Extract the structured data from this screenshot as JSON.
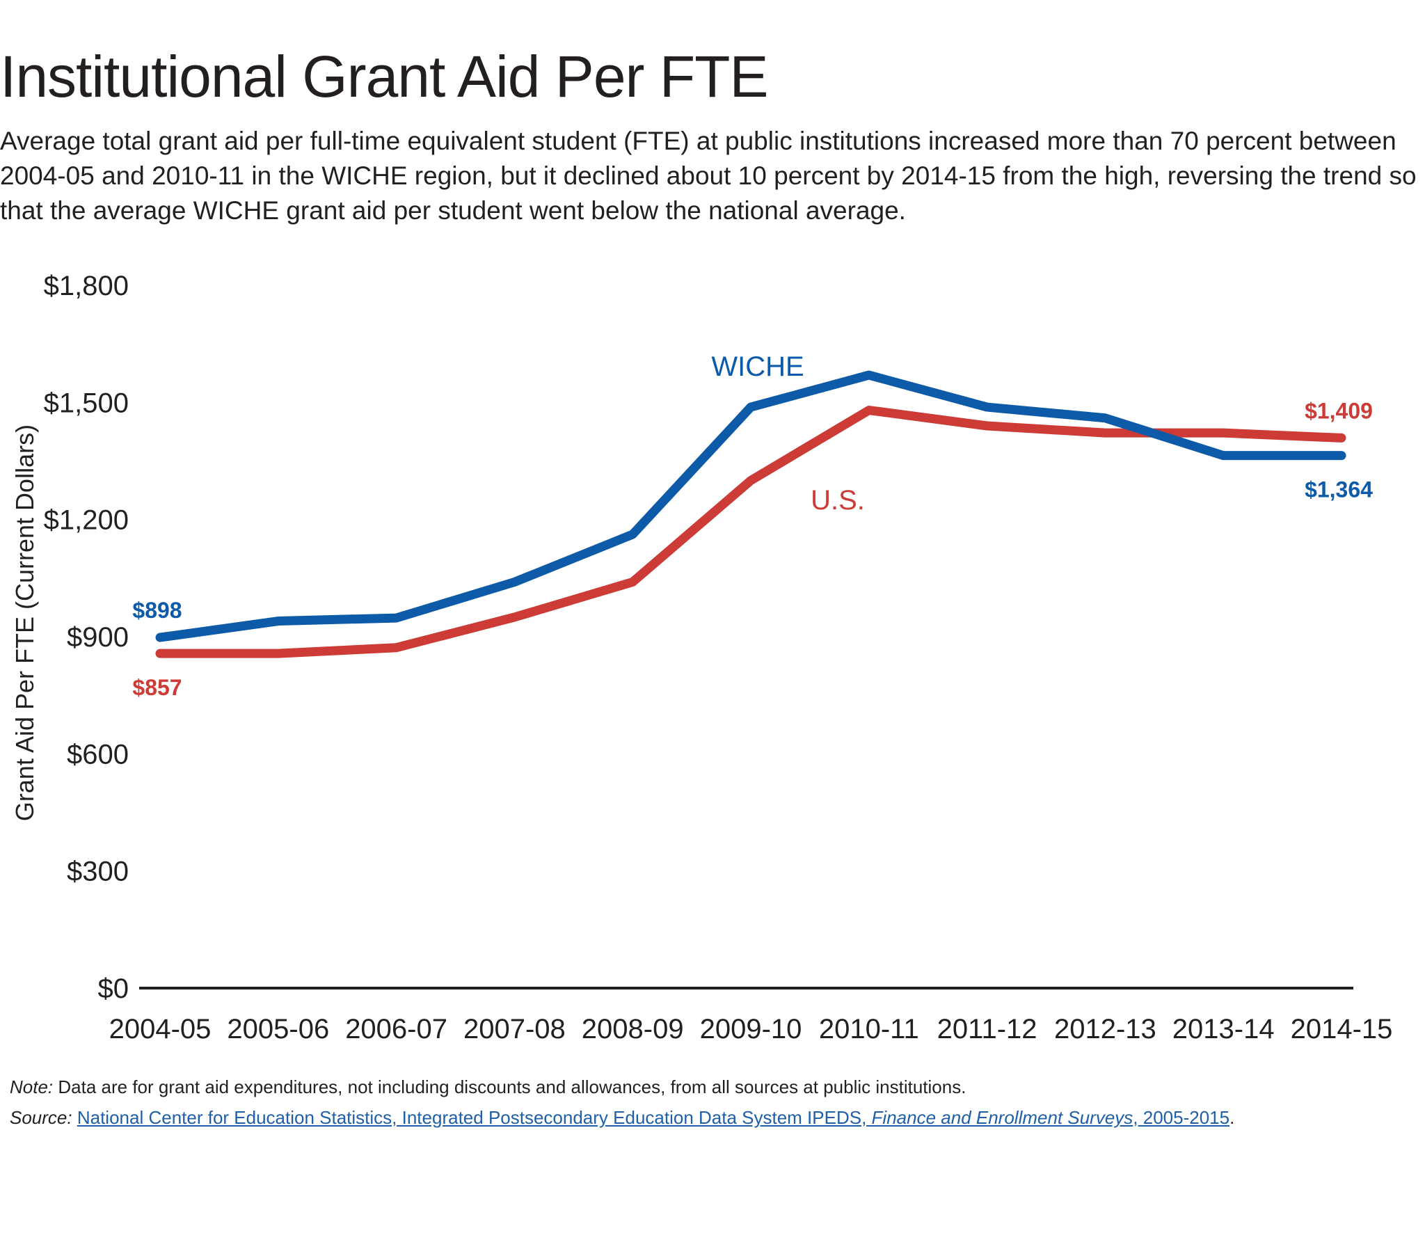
{
  "page": {
    "title": "Institutional Grant Aid Per FTE",
    "subtitle": "Average total grant aid per full-time equivalent student (FTE) at public institutions increased more than 70 percent between 2004-05 and 2010-11 in the WICHE region, but it declined about 10 percent by 2014-15 from the high, reversing the trend so that the average WICHE grant aid per student went below the national average."
  },
  "colors": {
    "wiche": "#0d5ba8",
    "us": "#cc3b36",
    "axis": "#231f20",
    "link": "#1f5fa8"
  },
  "chart_data": {
    "type": "line",
    "ylabel": "Grant Aid Per FTE (Current Dollars)",
    "ylim": [
      0,
      1800
    ],
    "yticks": [
      0,
      300,
      600,
      900,
      1200,
      1500,
      1800
    ],
    "ytick_labels": [
      "$0",
      "$300",
      "$600",
      "$900",
      "$1,200",
      "$1,500",
      "$1,800"
    ],
    "grid": false,
    "categories": [
      "2004-05",
      "2005-06",
      "2006-07",
      "2007-08",
      "2008-09",
      "2009-10",
      "2010-11",
      "2011-12",
      "2012-13",
      "2013-14",
      "2014-15"
    ],
    "series": [
      {
        "name": "WICHE",
        "color": "#0d5ba8",
        "values": [
          898,
          940,
          948,
          1040,
          1162,
          1488,
          1570,
          1488,
          1460,
          1364,
          1364
        ]
      },
      {
        "name": "U.S.",
        "color": "#cc3b36",
        "values": [
          857,
          857,
          872,
          950,
          1040,
          1300,
          1480,
          1440,
          1422,
          1422,
          1409
        ]
      }
    ],
    "annotations": [
      {
        "text": "$898",
        "series": "WICHE",
        "index": 0
      },
      {
        "text": "$857",
        "series": "U.S.",
        "index": 0
      },
      {
        "text": "$1,409",
        "series": "U.S.",
        "index": 10
      },
      {
        "text": "$1,364",
        "series": "WICHE",
        "index": 10
      }
    ]
  },
  "footer": {
    "note_label": "Note:",
    "note_text": " Data are for grant aid expenditures, not including discounts and allowances, from all sources at public institutions.",
    "source_label": "Source:",
    "source_link_text": "National Center for Education Statistics, Integrated Postsecondary Education Data System IPEDS, ",
    "source_link_italic": "Finance and Enrollment Surveys",
    "source_link_tail": ", 2005-2015",
    "source_end": "."
  }
}
